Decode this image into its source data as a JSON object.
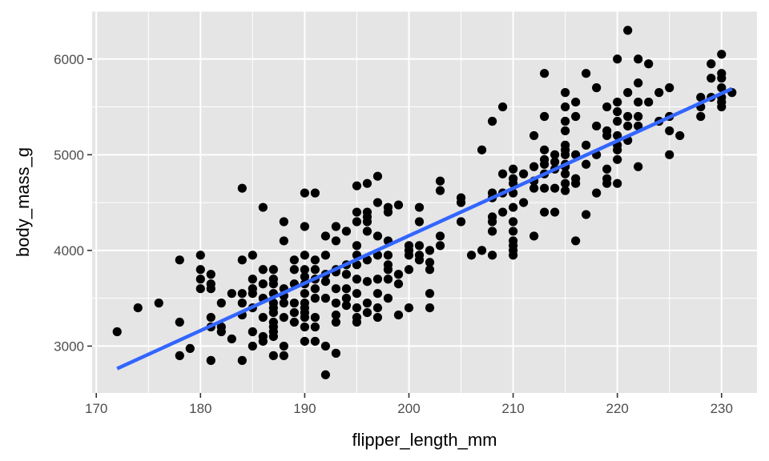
{
  "chart_data": {
    "type": "scatter",
    "title": "",
    "xlabel": "flipper_length_mm",
    "ylabel": "body_mass_g",
    "xlim": [
      169.6,
      233.4
    ],
    "ylim": [
      2510,
      6500
    ],
    "x_major_ticks": [
      170,
      180,
      190,
      200,
      210,
      220,
      230
    ],
    "x_minor_ticks": [
      175,
      185,
      195,
      205,
      215,
      225
    ],
    "y_major_ticks": [
      3000,
      4000,
      5000,
      6000
    ],
    "y_minor_ticks": [
      2500,
      3500,
      4500,
      5500,
      6500
    ],
    "grid": true,
    "colors": {
      "panel_background": "#e5e5e5",
      "grid_line": "#ffffff",
      "point": "#000000",
      "trend_line": "#3366ff",
      "tick_text": "#4d4d4d",
      "axis_title": "#000000"
    },
    "series": [
      {
        "kind": "points",
        "points": [
          [
            172,
            3150
          ],
          [
            174,
            3400
          ],
          [
            176,
            3450
          ],
          [
            178,
            3900
          ],
          [
            178,
            3250
          ],
          [
            178,
            2900
          ],
          [
            179,
            2975
          ],
          [
            180,
            3950
          ],
          [
            180,
            3800
          ],
          [
            180,
            3700
          ],
          [
            180,
            3600
          ],
          [
            181,
            3750
          ],
          [
            181,
            3650
          ],
          [
            181,
            3600
          ],
          [
            181,
            3300
          ],
          [
            181,
            3200
          ],
          [
            181,
            2850
          ],
          [
            182,
            3450
          ],
          [
            182,
            3200
          ],
          [
            182,
            3150
          ],
          [
            183,
            3550
          ],
          [
            183,
            3075
          ],
          [
            184,
            4650
          ],
          [
            184,
            3900
          ],
          [
            184,
            3550
          ],
          [
            184,
            3450
          ],
          [
            184,
            3325
          ],
          [
            184,
            2850
          ],
          [
            185,
            3950
          ],
          [
            185,
            3700
          ],
          [
            185,
            3600
          ],
          [
            185,
            3550
          ],
          [
            185,
            3400
          ],
          [
            185,
            3150
          ],
          [
            185,
            3000
          ],
          [
            186,
            4450
          ],
          [
            186,
            3800
          ],
          [
            186,
            3650
          ],
          [
            186,
            3500
          ],
          [
            186,
            3300
          ],
          [
            186,
            3100
          ],
          [
            186,
            3050
          ],
          [
            187,
            3800
          ],
          [
            187,
            3700
          ],
          [
            187,
            3650
          ],
          [
            187,
            3550
          ],
          [
            187,
            3450
          ],
          [
            187,
            3400
          ],
          [
            187,
            3350
          ],
          [
            187,
            3250
          ],
          [
            187,
            3200
          ],
          [
            187,
            3150
          ],
          [
            187,
            3100
          ],
          [
            187,
            2900
          ],
          [
            188,
            4300
          ],
          [
            188,
            4100
          ],
          [
            188,
            3600
          ],
          [
            188,
            3525
          ],
          [
            188,
            3450
          ],
          [
            188,
            3300
          ],
          [
            188,
            3000
          ],
          [
            188,
            2900
          ],
          [
            189,
            3900
          ],
          [
            189,
            3800
          ],
          [
            189,
            3650
          ],
          [
            189,
            3450
          ],
          [
            189,
            3350
          ],
          [
            189,
            3250
          ],
          [
            190,
            4600
          ],
          [
            190,
            4250
          ],
          [
            190,
            3950
          ],
          [
            190,
            3800
          ],
          [
            190,
            3725
          ],
          [
            190,
            3650
          ],
          [
            190,
            3550
          ],
          [
            190,
            3450
          ],
          [
            190,
            3400
          ],
          [
            190,
            3350
          ],
          [
            190,
            3300
          ],
          [
            190,
            3200
          ],
          [
            190,
            3050
          ],
          [
            191,
            4600
          ],
          [
            191,
            3900
          ],
          [
            191,
            3800
          ],
          [
            191,
            3700
          ],
          [
            191,
            3600
          ],
          [
            191,
            3500
          ],
          [
            191,
            3300
          ],
          [
            191,
            3200
          ],
          [
            191,
            3050
          ],
          [
            192,
            4150
          ],
          [
            192,
            3950
          ],
          [
            192,
            3750
          ],
          [
            192,
            3675
          ],
          [
            192,
            3500
          ],
          [
            192,
            3000
          ],
          [
            192,
            2700
          ],
          [
            193,
            4250
          ],
          [
            193,
            4100
          ],
          [
            193,
            3800
          ],
          [
            193,
            3775
          ],
          [
            193,
            3600
          ],
          [
            193,
            3450
          ],
          [
            193,
            3325
          ],
          [
            193,
            3250
          ],
          [
            193,
            2925
          ],
          [
            194,
            4200
          ],
          [
            194,
            3850
          ],
          [
            194,
            3750
          ],
          [
            194,
            3600
          ],
          [
            194,
            3500
          ],
          [
            194,
            3425
          ],
          [
            195,
            4675
          ],
          [
            195,
            4400
          ],
          [
            195,
            4300
          ],
          [
            195,
            4050
          ],
          [
            195,
            3950
          ],
          [
            195,
            3850
          ],
          [
            195,
            3700
          ],
          [
            195,
            3550
          ],
          [
            195,
            3400
          ],
          [
            195,
            3300
          ],
          [
            195,
            3250
          ],
          [
            196,
            4700
          ],
          [
            196,
            4400
          ],
          [
            196,
            4350
          ],
          [
            196,
            4300
          ],
          [
            196,
            4200
          ],
          [
            196,
            3900
          ],
          [
            196,
            3675
          ],
          [
            196,
            3450
          ],
          [
            196,
            3350
          ],
          [
            197,
            4775
          ],
          [
            197,
            4500
          ],
          [
            197,
            4150
          ],
          [
            197,
            3950
          ],
          [
            197,
            3700
          ],
          [
            197,
            3550
          ],
          [
            197,
            3400
          ],
          [
            197,
            3300
          ],
          [
            198,
            4450
          ],
          [
            198,
            4400
          ],
          [
            198,
            4100
          ],
          [
            198,
            3950
          ],
          [
            198,
            3850
          ],
          [
            198,
            3800
          ],
          [
            198,
            3700
          ],
          [
            198,
            3500
          ],
          [
            199,
            4475
          ],
          [
            199,
            3750
          ],
          [
            199,
            3650
          ],
          [
            199,
            3325
          ],
          [
            200,
            4050
          ],
          [
            200,
            4000
          ],
          [
            200,
            3950
          ],
          [
            200,
            3800
          ],
          [
            200,
            3400
          ],
          [
            201,
            4450
          ],
          [
            201,
            4300
          ],
          [
            201,
            4050
          ],
          [
            201,
            3950
          ],
          [
            201,
            3900
          ],
          [
            202,
            4000
          ],
          [
            202,
            3875
          ],
          [
            202,
            3800
          ],
          [
            202,
            3550
          ],
          [
            202,
            3400
          ],
          [
            203,
            4725
          ],
          [
            203,
            4625
          ],
          [
            203,
            4150
          ],
          [
            203,
            4050
          ],
          [
            205,
            4550
          ],
          [
            205,
            4500
          ],
          [
            205,
            4300
          ],
          [
            206,
            3950
          ],
          [
            207,
            5050
          ],
          [
            207,
            4000
          ],
          [
            208,
            5350
          ],
          [
            208,
            4600
          ],
          [
            208,
            4550
          ],
          [
            208,
            4350
          ],
          [
            208,
            4300
          ],
          [
            208,
            4200
          ],
          [
            208,
            3950
          ],
          [
            209,
            5500
          ],
          [
            209,
            4800
          ],
          [
            209,
            4600
          ],
          [
            209,
            4400
          ],
          [
            210,
            4850
          ],
          [
            210,
            4750
          ],
          [
            210,
            4700
          ],
          [
            210,
            4600
          ],
          [
            210,
            4450
          ],
          [
            210,
            4300
          ],
          [
            210,
            4200
          ],
          [
            210,
            4100
          ],
          [
            210,
            4050
          ],
          [
            210,
            4000
          ],
          [
            210,
            3950
          ],
          [
            211,
            4800
          ],
          [
            211,
            4500
          ],
          [
            212,
            5200
          ],
          [
            212,
            4875
          ],
          [
            212,
            4725
          ],
          [
            212,
            4650
          ],
          [
            212,
            4150
          ],
          [
            213,
            5850
          ],
          [
            213,
            5400
          ],
          [
            213,
            5050
          ],
          [
            213,
            4950
          ],
          [
            213,
            4900
          ],
          [
            213,
            4800
          ],
          [
            213,
            4650
          ],
          [
            213,
            4400
          ],
          [
            214,
            5000
          ],
          [
            214,
            4925
          ],
          [
            214,
            4850
          ],
          [
            214,
            4650
          ],
          [
            214,
            4400
          ],
          [
            215,
            5650
          ],
          [
            215,
            5500
          ],
          [
            215,
            5350
          ],
          [
            215,
            5250
          ],
          [
            215,
            5100
          ],
          [
            215,
            5050
          ],
          [
            215,
            5000
          ],
          [
            215,
            4900
          ],
          [
            215,
            4875
          ],
          [
            215,
            4800
          ],
          [
            215,
            4700
          ],
          [
            215,
            4625
          ],
          [
            216,
            5550
          ],
          [
            216,
            5400
          ],
          [
            216,
            5000
          ],
          [
            216,
            4750
          ],
          [
            216,
            4700
          ],
          [
            216,
            4100
          ],
          [
            217,
            5850
          ],
          [
            217,
            5100
          ],
          [
            217,
            4900
          ],
          [
            217,
            4375
          ],
          [
            218,
            5700
          ],
          [
            218,
            5300
          ],
          [
            218,
            5000
          ],
          [
            218,
            4600
          ],
          [
            219,
            5500
          ],
          [
            219,
            5250
          ],
          [
            219,
            5200
          ],
          [
            219,
            4850
          ],
          [
            219,
            4750
          ],
          [
            219,
            4700
          ],
          [
            220,
            6000
          ],
          [
            220,
            5550
          ],
          [
            220,
            5450
          ],
          [
            220,
            5350
          ],
          [
            220,
            5200
          ],
          [
            220,
            5100
          ],
          [
            220,
            5050
          ],
          [
            220,
            4950
          ],
          [
            220,
            4700
          ],
          [
            221,
            5650
          ],
          [
            221,
            5400
          ],
          [
            221,
            5300
          ],
          [
            221,
            5150
          ],
          [
            222,
            5750
          ],
          [
            222,
            5550
          ],
          [
            222,
            5400
          ],
          [
            222,
            5300
          ],
          [
            222,
            4875
          ],
          [
            223,
            5950
          ],
          [
            223,
            5550
          ],
          [
            224,
            5650
          ],
          [
            224,
            5350
          ],
          [
            225,
            5700
          ],
          [
            225,
            5400
          ],
          [
            225,
            5250
          ],
          [
            225,
            5000
          ],
          [
            226,
            5200
          ],
          [
            228,
            5600
          ],
          [
            228,
            5500
          ],
          [
            228,
            5400
          ],
          [
            229,
            5950
          ],
          [
            229,
            5800
          ],
          [
            229,
            5600
          ],
          [
            230,
            6050
          ],
          [
            230,
            5850
          ],
          [
            230,
            5800
          ],
          [
            230,
            5700
          ],
          [
            230,
            5600
          ],
          [
            230,
            5550
          ],
          [
            230,
            5500
          ],
          [
            231,
            5650
          ],
          [
            221,
            6300
          ],
          [
            222,
            6000
          ]
        ]
      },
      {
        "kind": "linear-fit",
        "line": [
          [
            172,
            2765
          ],
          [
            231,
            5690
          ]
        ]
      }
    ]
  }
}
